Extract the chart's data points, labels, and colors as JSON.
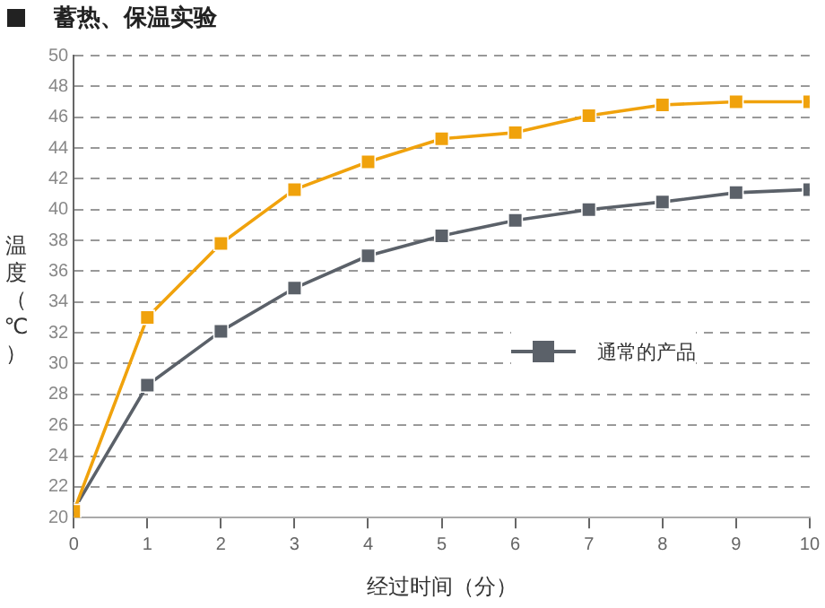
{
  "chart_data": {
    "type": "line",
    "title": "蓄热、保温实验",
    "xlabel": "经过时间（分）",
    "ylabel": "温度（℃）",
    "x": [
      0,
      1,
      2,
      3,
      4,
      5,
      6,
      7,
      8,
      9,
      10
    ],
    "series": [
      {
        "color": "#f0a20c",
        "values": [
          20.4,
          33,
          37.8,
          41.3,
          43.1,
          44.6,
          45,
          46.1,
          46.8,
          47,
          47
        ]
      },
      {
        "name": "通常的产品",
        "color": "#5b6169",
        "values": [
          20.5,
          28.6,
          32.1,
          34.9,
          37,
          38.3,
          39.3,
          40,
          40.5,
          41.1,
          41.3
        ]
      }
    ],
    "xlim": [
      0,
      10
    ],
    "xticks": [
      0,
      1,
      2,
      3,
      4,
      5,
      6,
      7,
      8,
      9,
      10
    ],
    "ylim": [
      20,
      50
    ],
    "yticks": [
      20,
      22,
      24,
      26,
      28,
      30,
      32,
      34,
      36,
      38,
      40,
      42,
      44,
      46,
      48,
      50
    ],
    "grid": "y",
    "legend": "right",
    "marker": "square",
    "line_style": "solid"
  }
}
